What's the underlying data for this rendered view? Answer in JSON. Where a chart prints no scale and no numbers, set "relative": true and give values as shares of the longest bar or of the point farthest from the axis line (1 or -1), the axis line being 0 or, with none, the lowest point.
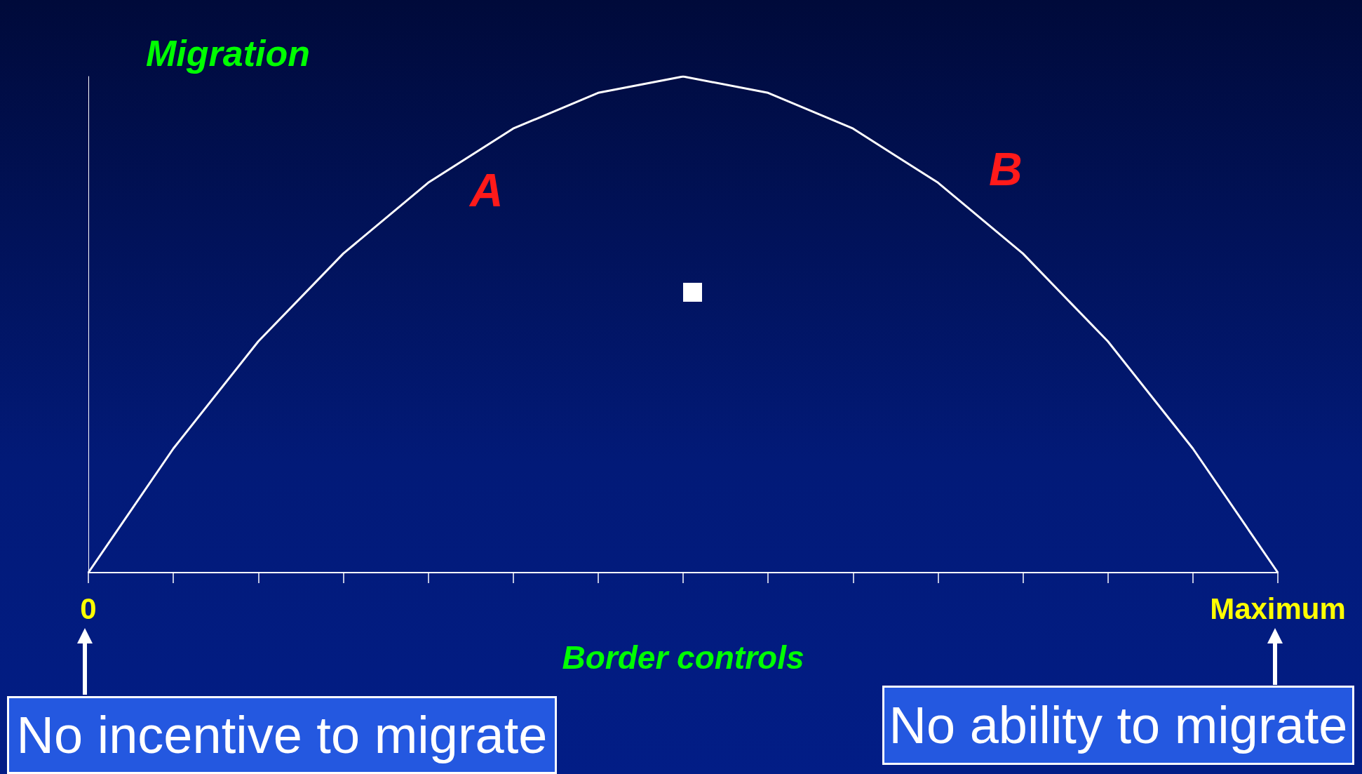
{
  "chart_data": {
    "type": "line",
    "relative": true,
    "color": "#ffffff",
    "categories": [
      "0",
      null,
      null,
      null,
      null,
      null,
      null,
      null,
      null,
      null,
      null,
      null,
      null,
      null,
      "Maximum"
    ],
    "values": [
      0,
      0.25,
      0.466,
      0.643,
      0.786,
      0.895,
      0.967,
      1,
      0.967,
      0.895,
      0.786,
      0.643,
      0.466,
      0.25,
      0
    ],
    "xlabel": "Border controls",
    "ylabel": "Migration",
    "annotations": [
      "A",
      "B",
      "No incentive to migrate",
      "No ability to migrate"
    ]
  }
}
